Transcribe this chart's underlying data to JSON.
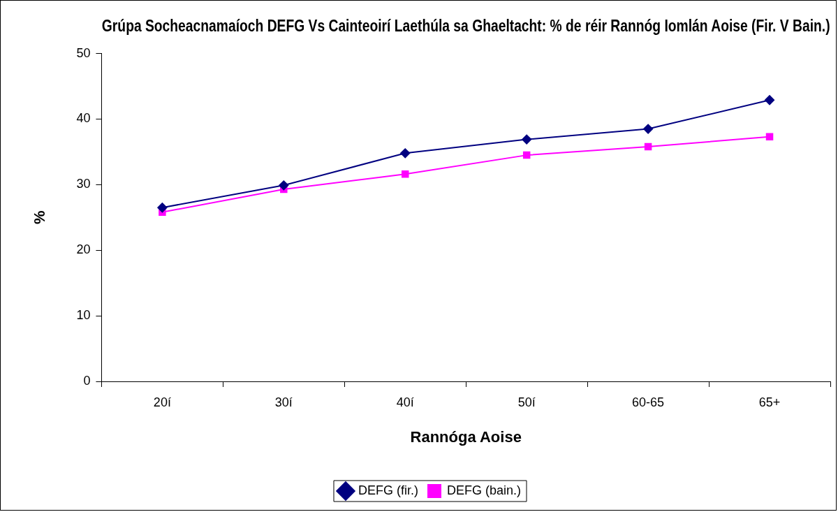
{
  "chart_data": {
    "type": "line",
    "title": "Grúpa Socheacnamaíoch DEFG Vs Cainteoirí Laethúla sa Ghaeltacht: % de réir Rannóg Iomlán Aoise (Fir. V Bain.)",
    "xlabel": "Rannóga Aoise",
    "ylabel": "%",
    "categories": [
      "20í",
      "30í",
      "40í",
      "50í",
      "60-65",
      "65+"
    ],
    "series": [
      {
        "name": "DEFG (fir.)",
        "color": "#000080",
        "marker": "diamond",
        "values": [
          26.5,
          29.9,
          34.8,
          36.9,
          38.5,
          42.9
        ]
      },
      {
        "name": "DEFG (bain.)",
        "color": "#ff00ff",
        "marker": "square",
        "values": [
          25.8,
          29.3,
          31.6,
          34.5,
          35.8,
          37.3
        ]
      }
    ],
    "ylim": [
      0,
      50
    ],
    "yticks": [
      0,
      10,
      20,
      30,
      40,
      50
    ],
    "grid": false,
    "legend": "bottom"
  }
}
